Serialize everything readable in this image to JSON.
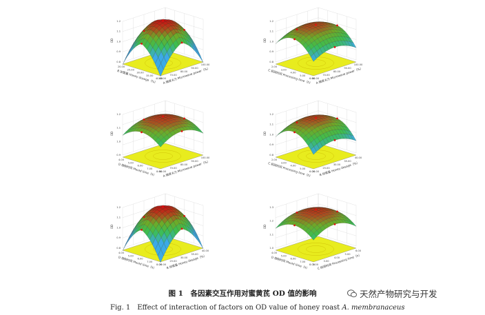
{
  "figure": {
    "caption_cn": "图 1　各因素交互作用对蜜黄芪 OD 值的影响",
    "caption_en_prefix": "Fig. 1　Effect of interaction of factors on OD value of honey roast ",
    "caption_en_italic": "A. membranaceus",
    "watermark": "天然产物研究与开发"
  },
  "plots": [
    {
      "zlabel": "OD",
      "xlabel": "B 加蜜量 Honey dosage（%）",
      "ylabel": "A 微波火力 Microwave power（%）",
      "zticks": [
        "0.8",
        "0.9",
        "1.0",
        "1.1",
        "1.2"
      ],
      "xticks": [
        "20.00",
        "25.00",
        "30.00",
        "35.00",
        "40.00"
      ],
      "yticks": [
        "60.00",
        "70.00",
        "80.00",
        "90.00",
        "100.00"
      ],
      "surface": "peak"
    },
    {
      "zlabel": "OD",
      "xlabel": "C 焖润时间 Processing time（h）",
      "ylabel": "A 微波火力 Microwave power（%）",
      "zticks": [
        "0.8",
        "0.9",
        "1.0",
        "1.1",
        "1.2"
      ],
      "xticks": [
        "2.00",
        "3.00",
        "4.00",
        "5.00",
        "6.00"
      ],
      "yticks": [
        "60.00",
        "70.00",
        "80.00",
        "90.00",
        "100.00"
      ],
      "surface": "saddle"
    },
    {
      "zlabel": "OD",
      "xlabel": "D 炮制时间 Mould time（h）",
      "ylabel": "A 微波火力 Microwave power（%）",
      "zticks": [
        "0.9",
        "1.0",
        "1.1",
        "1.2"
      ],
      "xticks": [
        "4.00",
        "5.00",
        "6.00",
        "7.00",
        "8.00"
      ],
      "yticks": [
        "60.00",
        "70.00",
        "80.00",
        "90.00",
        "100.00"
      ],
      "surface": "dome"
    },
    {
      "zlabel": "OD",
      "xlabel": "C 焖润时间 Processing time（h）",
      "ylabel": "B 加蜜量 Honey dosage（%）",
      "zticks": [
        "0.8",
        "0.9",
        "1.0",
        "1.1",
        "1.2"
      ],
      "xticks": [
        "2.00",
        "3.00",
        "4.00",
        "5.00",
        "6.00"
      ],
      "yticks": [
        "20.00",
        "25.00",
        "30.00",
        "35.00",
        "40.00"
      ],
      "surface": "saddle"
    },
    {
      "zlabel": "OD",
      "xlabel": "D 炮制时间 Mould time（h）",
      "ylabel": "B 加蜜量 Honey dosage（%）",
      "zticks": [
        "0.8",
        "0.9",
        "1.0",
        "1.1",
        "1.2"
      ],
      "xticks": [
        "4.00",
        "5.00",
        "6.00",
        "7.00",
        "8.00"
      ],
      "yticks": [
        "20.00",
        "25.00",
        "30.00",
        "35.00",
        "40.00"
      ],
      "surface": "peak"
    },
    {
      "zlabel": "OD",
      "xlabel": "D 炮制时间 Mould time（h）",
      "ylabel": "C 焖润时间 Processing time（h）",
      "zticks": [
        "1.0",
        "1.1",
        "1.2",
        "1.3"
      ],
      "xticks": [
        "4.00",
        "5.00",
        "6.00",
        "7.00",
        "8.00"
      ],
      "yticks": [
        "2.00",
        "3.00",
        "4.00",
        "5.00",
        "6.00"
      ],
      "surface": "dome"
    }
  ]
}
